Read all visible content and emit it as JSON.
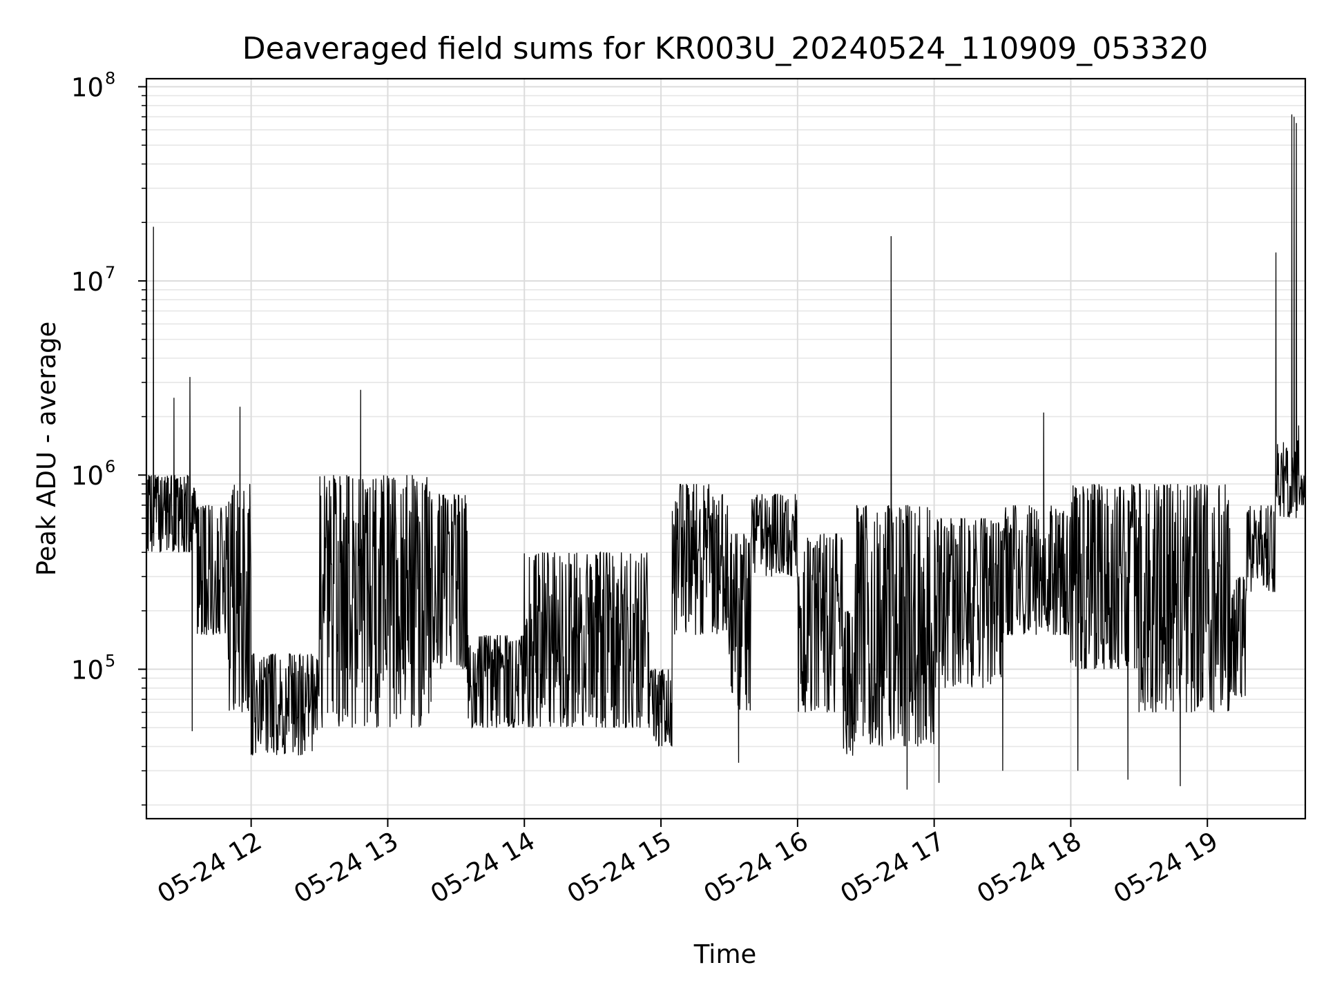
{
  "chart_data": {
    "type": "line",
    "title": "Deaveraged field sums for KR003U_20240524_110909_053320",
    "xlabel": "Time",
    "ylabel": "Peak ADU - average",
    "yscale": "log",
    "ylim": [
      17000,
      110000000
    ],
    "xlim": [
      "2024-05-24 11:14",
      "2024-05-24 19:43"
    ],
    "grid": true,
    "line_color": "#000000",
    "x_ticks": [
      {
        "at": "2024-05-24 12:00",
        "label": "05-24 12"
      },
      {
        "at": "2024-05-24 13:00",
        "label": "05-24 13"
      },
      {
        "at": "2024-05-24 14:00",
        "label": "05-24 14"
      },
      {
        "at": "2024-05-24 15:00",
        "label": "05-24 15"
      },
      {
        "at": "2024-05-24 16:00",
        "label": "05-24 16"
      },
      {
        "at": "2024-05-24 17:00",
        "label": "05-24 17"
      },
      {
        "at": "2024-05-24 18:00",
        "label": "05-24 18"
      },
      {
        "at": "2024-05-24 19:00",
        "label": "05-24 19"
      }
    ],
    "y_ticks": [
      {
        "value": 100000,
        "base": "10",
        "exp": "5"
      },
      {
        "value": 1000000,
        "base": "10",
        "exp": "6"
      },
      {
        "value": 10000000,
        "base": "10",
        "exp": "7"
      },
      {
        "value": 100000000,
        "base": "10",
        "exp": "8"
      }
    ],
    "series": [
      {
        "segments": [
          {
            "from": "2024-05-24 11:14",
            "to": "2024-05-24 11:36",
            "low": 400000,
            "high": 1000000
          },
          {
            "from": "2024-05-24 11:36",
            "to": "2024-05-24 11:50",
            "low": 150000,
            "high": 700000
          },
          {
            "from": "2024-05-24 11:50",
            "to": "2024-05-24 12:00",
            "low": 60000,
            "high": 900000
          },
          {
            "from": "2024-05-24 12:00",
            "to": "2024-05-24 12:30",
            "low": 36000,
            "high": 120000
          },
          {
            "from": "2024-05-24 12:30",
            "to": "2024-05-24 13:20",
            "low": 50000,
            "high": 1000000
          },
          {
            "from": "2024-05-24 13:20",
            "to": "2024-05-24 13:35",
            "low": 100000,
            "high": 800000
          },
          {
            "from": "2024-05-24 13:35",
            "to": "2024-05-24 14:00",
            "low": 50000,
            "high": 150000
          },
          {
            "from": "2024-05-24 14:00",
            "to": "2024-05-24 14:55",
            "low": 50000,
            "high": 400000
          },
          {
            "from": "2024-05-24 14:55",
            "to": "2024-05-24 15:05",
            "low": 40000,
            "high": 100000
          },
          {
            "from": "2024-05-24 15:05",
            "to": "2024-05-24 15:30",
            "low": 150000,
            "high": 900000
          },
          {
            "from": "2024-05-24 15:30",
            "to": "2024-05-24 15:40",
            "low": 60000,
            "high": 500000
          },
          {
            "from": "2024-05-24 15:40",
            "to": "2024-05-24 16:00",
            "low": 300000,
            "high": 800000
          },
          {
            "from": "2024-05-24 16:00",
            "to": "2024-05-24 16:20",
            "low": 60000,
            "high": 500000
          },
          {
            "from": "2024-05-24 16:20",
            "to": "2024-05-24 16:25",
            "low": 35000,
            "high": 200000
          },
          {
            "from": "2024-05-24 16:25",
            "to": "2024-05-24 17:00",
            "low": 40000,
            "high": 700000
          },
          {
            "from": "2024-05-24 17:00",
            "to": "2024-05-24 17:30",
            "low": 80000,
            "high": 600000
          },
          {
            "from": "2024-05-24 17:30",
            "to": "2024-05-24 18:00",
            "low": 150000,
            "high": 700000
          },
          {
            "from": "2024-05-24 18:00",
            "to": "2024-05-24 18:30",
            "low": 100000,
            "high": 900000
          },
          {
            "from": "2024-05-24 18:30",
            "to": "2024-05-24 19:10",
            "low": 60000,
            "high": 900000
          },
          {
            "from": "2024-05-24 19:10",
            "to": "2024-05-24 19:17",
            "low": 72000,
            "high": 300000
          },
          {
            "from": "2024-05-24 19:17",
            "to": "2024-05-24 19:30",
            "low": 250000,
            "high": 700000
          },
          {
            "from": "2024-05-24 19:30",
            "to": "2024-05-24 19:40",
            "low": 600000,
            "high": 1500000
          },
          {
            "from": "2024-05-24 19:40",
            "to": "2024-05-24 19:43",
            "low": 700000,
            "high": 1000000
          }
        ],
        "spikes": [
          {
            "t": "2024-05-24 11:17",
            "y": 19000000
          },
          {
            "t": "2024-05-24 11:26",
            "y": 2500000
          },
          {
            "t": "2024-05-24 11:33",
            "y": 3200000
          },
          {
            "t": "2024-05-24 11:34",
            "y": 48000
          },
          {
            "t": "2024-05-24 11:55",
            "y": 2250000
          },
          {
            "t": "2024-05-24 12:48",
            "y": 2750000
          },
          {
            "t": "2024-05-24 15:34",
            "y": 33000
          },
          {
            "t": "2024-05-24 16:41",
            "y": 17000000
          },
          {
            "t": "2024-05-24 16:48",
            "y": 24000
          },
          {
            "t": "2024-05-24 17:02",
            "y": 26000
          },
          {
            "t": "2024-05-24 17:30",
            "y": 30000
          },
          {
            "t": "2024-05-24 17:48",
            "y": 2100000
          },
          {
            "t": "2024-05-24 18:03",
            "y": 30000
          },
          {
            "t": "2024-05-24 18:25",
            "y": 27000
          },
          {
            "t": "2024-05-24 18:48",
            "y": 25000
          },
          {
            "t": "2024-05-24 19:30",
            "y": 14000000
          },
          {
            "t": "2024-05-24 19:37",
            "y": 72000000
          },
          {
            "t": "2024-05-24 19:38",
            "y": 70000000
          },
          {
            "t": "2024-05-24 19:39",
            "y": 65000000
          },
          {
            "t": "2024-05-24 19:40",
            "y": 1800000
          }
        ]
      }
    ]
  }
}
